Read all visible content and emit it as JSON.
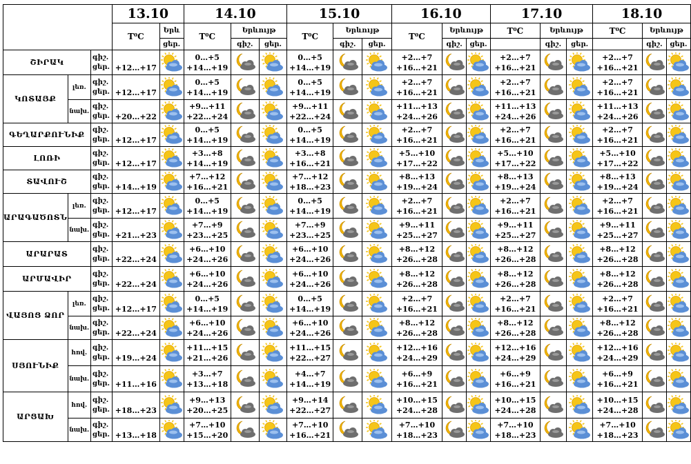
{
  "header": {
    "dates": [
      "13.10",
      "14.10",
      "15.10",
      "16.10",
      "17.10",
      "18.10"
    ],
    "temp_label": "T⁰C",
    "weather_label": "Երևույթ",
    "weather_label_short": "Երև",
    "night_label": "գիշ.",
    "day_label": "ցեր.",
    "day_label_short": "ցեր."
  },
  "colors": {
    "sun": "#f5c518",
    "cloud": "#5b8fd6",
    "dark_cloud": "#6e6e6e",
    "moon": "#f2b400"
  },
  "rows": [
    {
      "region": "ՇԻՐԱԿ",
      "alt": "",
      "d13": "+12…+17",
      "n": [
        "0…+5",
        "0…+5",
        "+2…+7",
        "+2…+7",
        "+2…+7"
      ],
      "d": [
        "+14…+19",
        "+14…+19",
        "+16…+21",
        "+16…+21",
        "+16…+21"
      ]
    },
    {
      "region": "ԿՈՏԱՅՔ",
      "alt": "լեռ.",
      "d13": "+12…+17",
      "n": [
        "0…+5",
        "0…+5",
        "+2…+7",
        "+2…+7",
        "+2…+7"
      ],
      "d": [
        "+14…+19",
        "+14…+19",
        "+16…+21",
        "+16…+21",
        "+16…+21"
      ]
    },
    {
      "region": "",
      "alt": "նախ.",
      "d13": "+20…+22",
      "n": [
        "+9…+11",
        "+9…+11",
        "+11…+13",
        "+11…+13",
        "+11…+13"
      ],
      "d": [
        "+22…+24",
        "+22…+24",
        "+24…+26",
        "+24…+26",
        "+24…+26"
      ]
    },
    {
      "region": "ԳԵՂԱՐՔՈՒՆԻՔ",
      "alt": "",
      "d13": "+12…+17",
      "n": [
        "0…+5",
        "0…+5",
        "+2…+7",
        "+2…+7",
        "+2…+7"
      ],
      "d": [
        "+14…+19",
        "+14…+19",
        "+16…+21",
        "+16…+21",
        "+16…+21"
      ]
    },
    {
      "region": "ԼՈՌԻ",
      "alt": "",
      "d13": "+12…+17",
      "n": [
        "+3…+8",
        "+3…+8",
        "+5…+10",
        "+5…+10",
        "+5…+10"
      ],
      "d": [
        "+14…+19",
        "+16…+21",
        "+17…+22",
        "+17…+22",
        "+17…+22"
      ]
    },
    {
      "region": "ՏԱՎՈՒՇ",
      "alt": "",
      "d13": "+14…+19",
      "n": [
        "+7…+12",
        "+7…+12",
        "+8…+13",
        "+8…+13",
        "+8…+13"
      ],
      "d": [
        "+16…+21",
        "+18…+23",
        "+19…+24",
        "+19…+24",
        "+19…+24"
      ]
    },
    {
      "region": "ԱՐԱԳԱԾՈՏՆ",
      "alt": "լեռ.",
      "d13": "+12…+17",
      "n": [
        "0…+5",
        "0…+5",
        "+2…+7",
        "+2…+7",
        "+2…+7"
      ],
      "d": [
        "+14…+19",
        "+14…+19",
        "+16…+21",
        "+16…+21",
        "+16…+21"
      ]
    },
    {
      "region": "",
      "alt": "նախ.",
      "d13": "+21…+23",
      "n": [
        "+7…+9",
        "+7…+9",
        "+9…+11",
        "+9…+11",
        "+9…+11"
      ],
      "d": [
        "+23…+25",
        "+23…+25",
        "+25…+27",
        "+25…+27",
        "+25…+27"
      ]
    },
    {
      "region": "ԱՐԱՐԱՏ",
      "alt": "",
      "d13": "+22…+24",
      "n": [
        "+6…+10",
        "+6…+10",
        "+8…+12",
        "+8…+12",
        "+8…+12"
      ],
      "d": [
        "+24…+26",
        "+24…+26",
        "+26…+28",
        "+26…+28",
        "+26…+28"
      ]
    },
    {
      "region": "ԱՐՄԱՎԻՐ",
      "alt": "",
      "d13": "+22…+24",
      "n": [
        "+6…+10",
        "+6…+10",
        "+8…+12",
        "+8…+12",
        "+8…+12"
      ],
      "d": [
        "+24…+26",
        "+24…+26",
        "+26…+28",
        "+26…+28",
        "+26…+28"
      ]
    },
    {
      "region": "ՎԱՅՈՑ ՁՈՐ",
      "alt": "լեռ.",
      "d13": "+12…+17",
      "n": [
        "0…+5",
        "0…+5",
        "+2…+7",
        "+2…+7",
        "+2…+7"
      ],
      "d": [
        "+14…+19",
        "+14…+19",
        "+16…+21",
        "+16…+21",
        "+16…+21"
      ]
    },
    {
      "region": "",
      "alt": "նախ.",
      "d13": "+22…+24",
      "n": [
        "+6…+10",
        "+6…+10",
        "+8…+12",
        "+8…+12",
        "+8…+12"
      ],
      "d": [
        "+24…+26",
        "+24…+26",
        "+26…+28",
        "+26…+28",
        "+26…+28"
      ]
    },
    {
      "region": "ՍՅՈՒՆԻՔ",
      "alt": "հով.",
      "d13": "+19…+24",
      "n": [
        "+11…+15",
        "+11…+15",
        "+12…+16",
        "+12…+16",
        "+12…+16"
      ],
      "d": [
        "+21…+26",
        "+22…+27",
        "+24…+29",
        "+24…+29",
        "+24…+29"
      ]
    },
    {
      "region": "",
      "alt": "նախ.",
      "d13": "+11…+16",
      "n": [
        "+3…+7",
        "+4…+7",
        "+6…+9",
        "+6…+9",
        "+6…+9"
      ],
      "d": [
        "+13…+18",
        "+14…+19",
        "+16…+21",
        "+16…+21",
        "+16…+21"
      ]
    },
    {
      "region": "ԱՐՑԱԽ",
      "alt": "հով.",
      "d13": "+18…+23",
      "n": [
        "+9…+13",
        "+9…+14",
        "+10…+15",
        "+10…+15",
        "+10…+15"
      ],
      "d": [
        "+20…+25",
        "+22…+27",
        "+24…+28",
        "+24…+28",
        "+24…+28"
      ]
    },
    {
      "region": "",
      "alt": "նախ.",
      "d13": "+13…+18",
      "n": [
        "+7…+10",
        "+7…+10",
        "+7…+10",
        "+7…+10",
        "+7…+10"
      ],
      "d": [
        "+15…+20",
        "+16…+21",
        "+18…+23",
        "+18…+23",
        "+18…+23"
      ]
    }
  ]
}
